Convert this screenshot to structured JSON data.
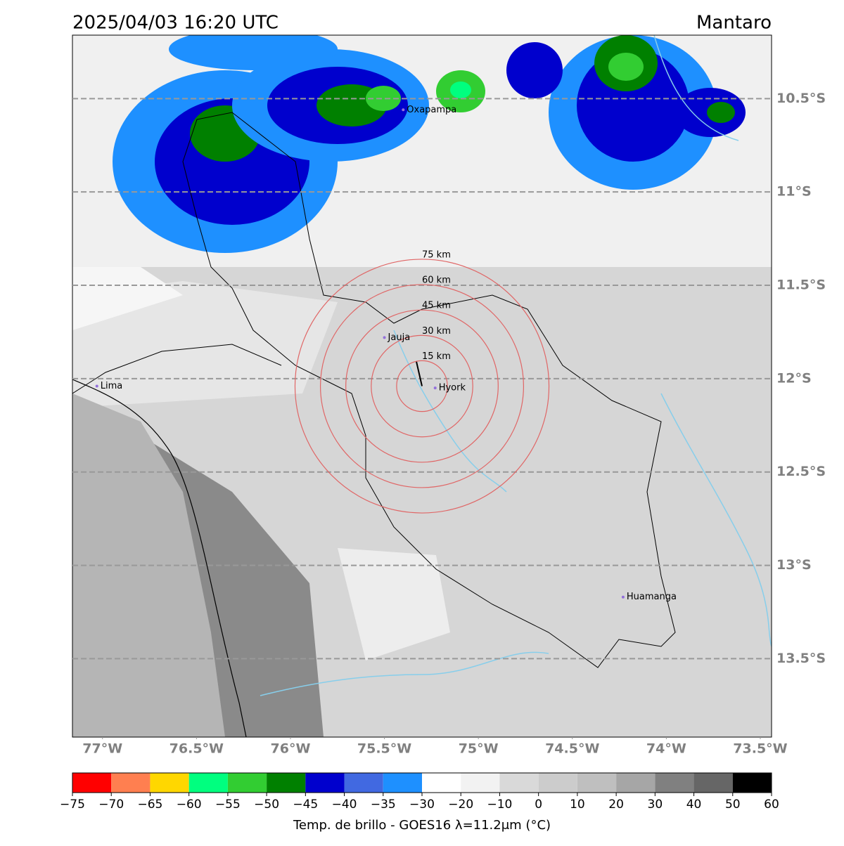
{
  "header": {
    "title": "2025/04/03 16:20 UTC",
    "region": "Mantaro"
  },
  "map": {
    "xlim": [
      -77.16,
      -73.44
    ],
    "ylim": [
      -13.92,
      -10.16
    ],
    "xticks": [
      {
        "value": -77,
        "label": "77°W"
      },
      {
        "value": -76.5,
        "label": "76.5°W"
      },
      {
        "value": -76,
        "label": "76°W"
      },
      {
        "value": -75.5,
        "label": "75.5°W"
      },
      {
        "value": -75,
        "label": "75°W"
      },
      {
        "value": -74.5,
        "label": "74.5°W"
      },
      {
        "value": -74,
        "label": "74°W"
      },
      {
        "value": -73.5,
        "label": "73.5°W"
      }
    ],
    "yticks": [
      {
        "value": -10.5,
        "label": "10.5°S"
      },
      {
        "value": -11,
        "label": "11°S"
      },
      {
        "value": -11.5,
        "label": "11.5°S"
      },
      {
        "value": -12,
        "label": "12°S"
      },
      {
        "value": -12.5,
        "label": "12.5°S"
      },
      {
        "value": -13,
        "label": "13°S"
      },
      {
        "value": -13.5,
        "label": "13.5°S"
      }
    ],
    "rings": {
      "center": {
        "lon": -75.3,
        "lat": -12.04
      },
      "radii": [
        {
          "value": 15,
          "label": "15 km"
        },
        {
          "value": 30,
          "label": "30 km"
        },
        {
          "value": 45,
          "label": "45 km"
        },
        {
          "value": 60,
          "label": "60 km"
        },
        {
          "value": 75,
          "label": "75 km"
        }
      ]
    },
    "places": [
      {
        "name": "Oxapampa",
        "lon": -75.4,
        "lat": -10.56
      },
      {
        "name": "Jauja",
        "lon": -75.5,
        "lat": -11.78
      },
      {
        "name": "Hyork",
        "lon": -75.23,
        "lat": -12.05
      },
      {
        "name": "Lima",
        "lon": -77.03,
        "lat": -12.04
      },
      {
        "name": "Huamanga",
        "lon": -74.23,
        "lat": -13.17
      }
    ]
  },
  "colorbar": {
    "bounds": [
      {
        "value": -75,
        "label": "−75"
      },
      {
        "value": -70,
        "label": "−70"
      },
      {
        "value": -65,
        "label": "−65"
      },
      {
        "value": -60,
        "label": "−60"
      },
      {
        "value": -55,
        "label": "−55"
      },
      {
        "value": -50,
        "label": "−50"
      },
      {
        "value": -45,
        "label": "−45"
      },
      {
        "value": -40,
        "label": "−40"
      },
      {
        "value": -35,
        "label": "−35"
      },
      {
        "value": -30,
        "label": "−30"
      },
      {
        "value": -20,
        "label": "−20"
      },
      {
        "value": -10,
        "label": "−10"
      },
      0,
      10,
      20,
      30,
      40,
      50,
      60
    ],
    "colors": [
      "#ff0000",
      "#ff7f50",
      "#ffd700",
      "#00ff7f",
      "#32cd32",
      "#008000",
      "#0000cd",
      "#4169e1",
      "#1e90ff",
      "#ffffff",
      "#f2f2f2",
      "#d9d9d9",
      "#cccccc",
      "#bfbfbf",
      "#a6a6a6",
      "#808080",
      "#666666",
      "#000000"
    ],
    "label": "Temp. de brillo - GOES16 λ=11.2μm (°C)"
  }
}
